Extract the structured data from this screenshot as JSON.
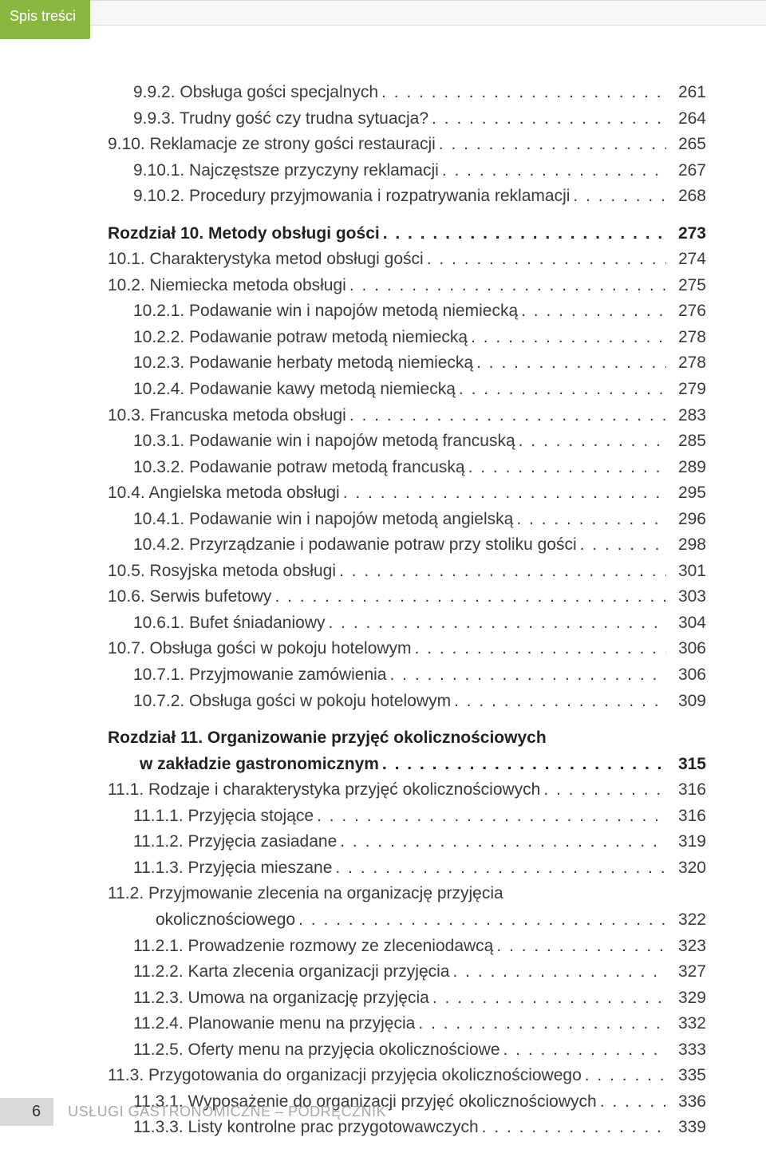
{
  "tab_label": "Spis treści",
  "footer": {
    "page_number": "6",
    "book_title": "USŁUGI GASTRONOMICZNE – PODRĘCZNIK"
  },
  "colors": {
    "tab_bg": "#8bb63f",
    "tab_text": "#ffffff",
    "text": "#3a3a3a",
    "footer_text": "#a8a8a8",
    "page_box_bg": "#d9d9d9"
  },
  "toc": [
    {
      "level": 2,
      "label": "9.9.2. Obsługa gości specjalnych",
      "page": "261"
    },
    {
      "level": 2,
      "label": "9.9.3. Trudny gość czy trudna sytuacja?",
      "page": "264"
    },
    {
      "level": 1,
      "label": "9.10. Reklamacje ze strony gości restauracji",
      "page": "265"
    },
    {
      "level": 2,
      "label": "9.10.1. Najczęstsze przyczyny reklamacji",
      "page": "267"
    },
    {
      "level": 2,
      "label": "9.10.2. Procedury przyjmowania i rozpatrywania reklamacji",
      "page": "268"
    },
    {
      "level": 0,
      "chapter": true,
      "section_break": true,
      "label": "Rozdział 10. Metody obsługi gości",
      "page": "273"
    },
    {
      "level": 1,
      "label": "10.1. Charakterystyka metod obsługi gości",
      "page": "274"
    },
    {
      "level": 1,
      "label": "10.2. Niemiecka metoda obsługi",
      "page": "275"
    },
    {
      "level": 2,
      "label": "10.2.1. Podawanie win i napojów metodą niemiecką",
      "page": "276"
    },
    {
      "level": 2,
      "label": "10.2.2. Podawanie potraw metodą niemiecką",
      "page": "278"
    },
    {
      "level": 2,
      "label": "10.2.3. Podawanie herbaty metodą niemiecką",
      "page": "278"
    },
    {
      "level": 2,
      "label": "10.2.4. Podawanie kawy metodą niemiecką",
      "page": "279"
    },
    {
      "level": 1,
      "label": "10.3. Francuska metoda obsługi",
      "page": "283"
    },
    {
      "level": 2,
      "label": "10.3.1. Podawanie win i napojów metodą francuską",
      "page": "285"
    },
    {
      "level": 2,
      "label": "10.3.2. Podawanie potraw metodą francuską",
      "page": "289"
    },
    {
      "level": 1,
      "label": "10.4. Angielska metoda obsługi",
      "page": "295"
    },
    {
      "level": 2,
      "label": "10.4.1. Podawanie win i napojów metodą angielską",
      "page": "296"
    },
    {
      "level": 2,
      "label": "10.4.2. Przyrządzanie i podawanie potraw przy stoliku gości",
      "page": "298"
    },
    {
      "level": 1,
      "label": "10.5. Rosyjska metoda obsługi",
      "page": "301"
    },
    {
      "level": 1,
      "label": "10.6. Serwis bufetowy",
      "page": "303"
    },
    {
      "level": 2,
      "label": "10.6.1. Bufet śniadaniowy",
      "page": "304"
    },
    {
      "level": 1,
      "label": "10.7. Obsługa gości w pokoju hotelowym",
      "page": "306"
    },
    {
      "level": 2,
      "label": "10.7.1. Przyjmowanie zamówienia",
      "page": "306"
    },
    {
      "level": 2,
      "label": "10.7.2. Obsługa gości w pokoju hotelowym",
      "page": "309"
    },
    {
      "level": 0,
      "chapter": true,
      "section_break": true,
      "wrap": true,
      "label": "Rozdział 11. Organizowanie przyjęć okolicznościowych w zakładzie gastronomicznym",
      "page": "315"
    },
    {
      "level": 1,
      "label": "11.1. Rodzaje i charakterystyka przyjęć okolicznościowych",
      "page": "316"
    },
    {
      "level": 2,
      "label": "11.1.1. Przyjęcia stojące",
      "page": "316"
    },
    {
      "level": 2,
      "label": "11.1.2. Przyjęcia zasiadane",
      "page": "319"
    },
    {
      "level": 2,
      "label": "11.1.3. Przyjęcia mieszane",
      "page": "320"
    },
    {
      "level": 1,
      "wrap": true,
      "label": "11.2. Przyjmowanie zlecenia na organizację przyjęcia okolicznościowego",
      "page": "322"
    },
    {
      "level": 2,
      "label": "11.2.1. Prowadzenie rozmowy ze zleceniodawcą",
      "page": "323"
    },
    {
      "level": 2,
      "label": "11.2.2. Karta zlecenia organizacji przyjęcia",
      "page": "327"
    },
    {
      "level": 2,
      "label": "11.2.3. Umowa na organizację przyjęcia",
      "page": "329"
    },
    {
      "level": 2,
      "label": "11.2.4. Planowanie menu na przyjęcia",
      "page": "332"
    },
    {
      "level": 2,
      "label": "11.2.5. Oferty menu na przyjęcia okolicznościowe",
      "page": "333"
    },
    {
      "level": 1,
      "label": "11.3. Przygotowania do organizacji przyjęcia okolicznościowego",
      "page": "335"
    },
    {
      "level": 2,
      "label": "11.3.1. Wyposażenie do organizacji przyjęć okolicznościowych",
      "page": "336"
    },
    {
      "level": 2,
      "label": "11.3.3. Listy kontrolne prac przygotowawczych",
      "page": "339"
    }
  ]
}
